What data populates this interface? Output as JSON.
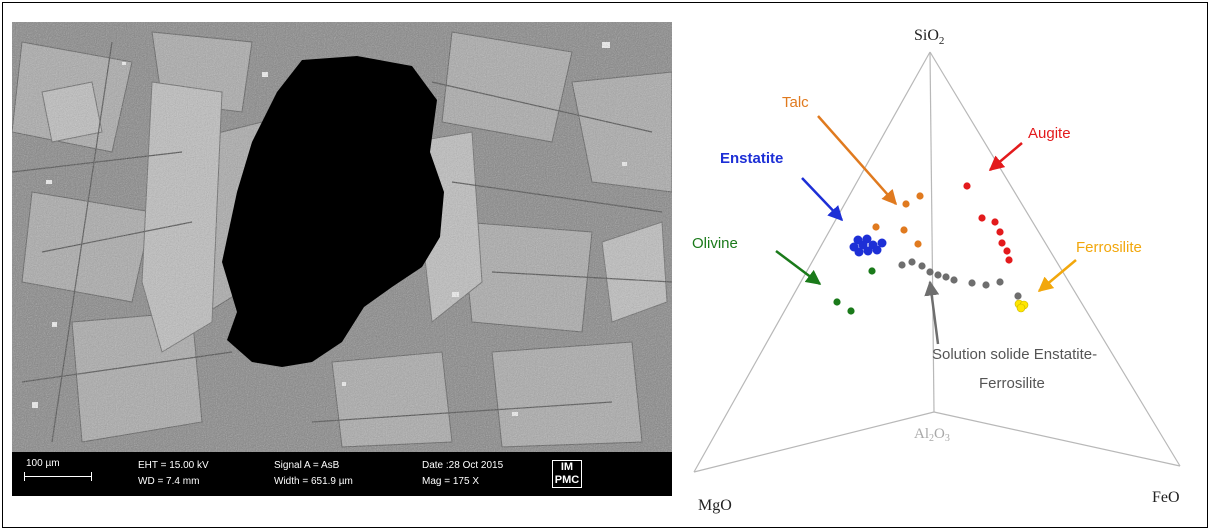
{
  "sem_image": {
    "scale_bar": "100 µm",
    "eht": "EHT = 15.00 kV",
    "wd": "WD = 7.4 mm",
    "signal": "Signal A = AsB",
    "width": "Width = 651.9 µm",
    "date": "Date :28 Oct 2015",
    "mag": "Mag =  175 X",
    "logo_text": "IMPMC"
  },
  "ternary": {
    "vertices": {
      "top": {
        "main": "SiO",
        "sub": "2"
      },
      "left": "MgO",
      "right": "FeO",
      "center": {
        "a": "Al",
        "b": "2",
        "c": "O",
        "d": "3"
      }
    },
    "labels": {
      "talc": "Talc",
      "augite": "Augite",
      "enstatite": "Enstatite",
      "olivine": "Olivine",
      "ferrosilite": "Ferrosilite",
      "solid_solution_line1": "Solution solide Enstatite-",
      "solid_solution_line2": "Ferrosilite"
    },
    "colors": {
      "talc": "#e07a1f",
      "augite": "#e31a1c",
      "enstatite": "#1d2fd6",
      "olivine": "#1a7a1a",
      "ferrosilite": "#f2a70c",
      "ferrosilite_points": "#ffe600",
      "solid_solution": "#6e6e6e",
      "axes": "#b8b8b8"
    }
  }
}
